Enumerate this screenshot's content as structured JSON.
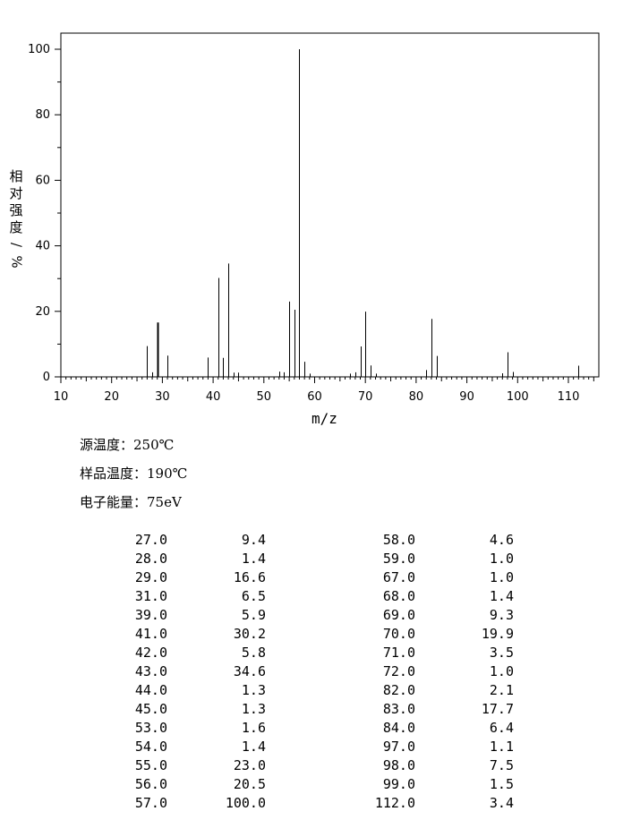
{
  "chart_data": {
    "type": "bar",
    "xlabel": "m/z",
    "ylabel_chars": [
      "相",
      "对",
      "强",
      "度",
      "%"
    ],
    "ylabel_slash": "/",
    "xlim": [
      10,
      116
    ],
    "ylim": [
      0,
      105
    ],
    "x_ticks": [
      "10",
      "20",
      "30",
      "40",
      "50",
      "60",
      "70",
      "80",
      "90",
      "100",
      "110"
    ],
    "y_ticks": [
      "0",
      "20",
      "40",
      "60",
      "80",
      "100"
    ],
    "peaks": [
      {
        "mz": 27.0,
        "abundance": 9.4
      },
      {
        "mz": 28.0,
        "abundance": 1.4
      },
      {
        "mz": 29.0,
        "abundance": 16.6
      },
      {
        "mz": 31.0,
        "abundance": 6.5
      },
      {
        "mz": 39.0,
        "abundance": 5.9
      },
      {
        "mz": 41.0,
        "abundance": 30.2
      },
      {
        "mz": 42.0,
        "abundance": 5.8
      },
      {
        "mz": 43.0,
        "abundance": 34.6
      },
      {
        "mz": 44.0,
        "abundance": 1.3
      },
      {
        "mz": 45.0,
        "abundance": 1.3
      },
      {
        "mz": 53.0,
        "abundance": 1.6
      },
      {
        "mz": 54.0,
        "abundance": 1.4
      },
      {
        "mz": 55.0,
        "abundance": 23.0
      },
      {
        "mz": 56.0,
        "abundance": 20.5
      },
      {
        "mz": 57.0,
        "abundance": 100.0
      },
      {
        "mz": 58.0,
        "abundance": 4.6
      },
      {
        "mz": 59.0,
        "abundance": 1.0
      },
      {
        "mz": 67.0,
        "abundance": 1.0
      },
      {
        "mz": 68.0,
        "abundance": 1.4
      },
      {
        "mz": 69.0,
        "abundance": 9.3
      },
      {
        "mz": 70.0,
        "abundance": 19.9
      },
      {
        "mz": 71.0,
        "abundance": 3.5
      },
      {
        "mz": 72.0,
        "abundance": 1.0
      },
      {
        "mz": 82.0,
        "abundance": 2.1
      },
      {
        "mz": 83.0,
        "abundance": 17.7
      },
      {
        "mz": 84.0,
        "abundance": 6.4
      },
      {
        "mz": 97.0,
        "abundance": 1.1
      },
      {
        "mz": 98.0,
        "abundance": 7.5
      },
      {
        "mz": 99.0,
        "abundance": 1.5
      },
      {
        "mz": 112.0,
        "abundance": 3.4
      }
    ]
  },
  "conditions": {
    "source_temp": "源温度：250℃",
    "sample_temp": "样品温度：190℃",
    "electron_energy": "电子能量：75eV"
  },
  "peak_table": {
    "col1": [
      [
        "27.0",
        "9.4"
      ],
      [
        "28.0",
        "1.4"
      ],
      [
        "29.0",
        "16.6"
      ],
      [
        "31.0",
        "6.5"
      ],
      [
        "39.0",
        "5.9"
      ],
      [
        "41.0",
        "30.2"
      ],
      [
        "42.0",
        "5.8"
      ],
      [
        "43.0",
        "34.6"
      ],
      [
        "44.0",
        "1.3"
      ],
      [
        "45.0",
        "1.3"
      ],
      [
        "53.0",
        "1.6"
      ],
      [
        "54.0",
        "1.4"
      ],
      [
        "55.0",
        "23.0"
      ],
      [
        "56.0",
        "20.5"
      ],
      [
        "57.0",
        "100.0"
      ]
    ],
    "col2": [
      [
        "58.0",
        "4.6"
      ],
      [
        "59.0",
        "1.0"
      ],
      [
        "67.0",
        "1.0"
      ],
      [
        "68.0",
        "1.4"
      ],
      [
        "69.0",
        "9.3"
      ],
      [
        "70.0",
        "19.9"
      ],
      [
        "71.0",
        "3.5"
      ],
      [
        "72.0",
        "1.0"
      ],
      [
        "82.0",
        "2.1"
      ],
      [
        "83.0",
        "17.7"
      ],
      [
        "84.0",
        "6.4"
      ],
      [
        "97.0",
        "1.1"
      ],
      [
        "98.0",
        "7.5"
      ],
      [
        "99.0",
        "1.5"
      ],
      [
        "112.0",
        "3.4"
      ]
    ]
  }
}
